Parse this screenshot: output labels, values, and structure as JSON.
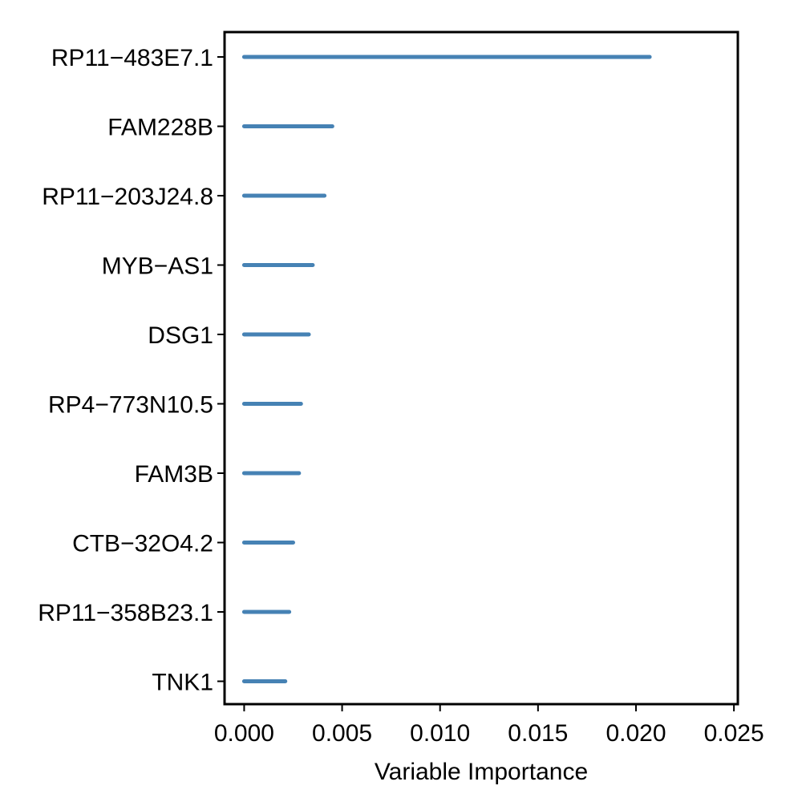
{
  "chart_data": {
    "type": "bar",
    "orientation": "horizontal",
    "title": "",
    "xlabel": "Variable Importance",
    "ylabel": "",
    "xlim": [
      -0.001,
      0.0252
    ],
    "xticks": [
      0.0,
      0.005,
      0.01,
      0.015,
      0.02,
      0.025
    ],
    "xtick_labels": [
      "0.000",
      "0.005",
      "0.010",
      "0.015",
      "0.020",
      "0.025"
    ],
    "grid": false,
    "legend": "none",
    "bar_color": "#4682B4",
    "categories": [
      "RP11−483E7.1",
      "FAM228B",
      "RP11−203J24.8",
      "MYB−AS1",
      "DSG1",
      "RP4−773N10.5",
      "FAM3B",
      "CTB−32O4.2",
      "RP11−358B23.1",
      "TNK1"
    ],
    "values": [
      0.0207,
      0.0045,
      0.0041,
      0.0035,
      0.0033,
      0.0029,
      0.0028,
      0.0025,
      0.0023,
      0.0021
    ]
  }
}
